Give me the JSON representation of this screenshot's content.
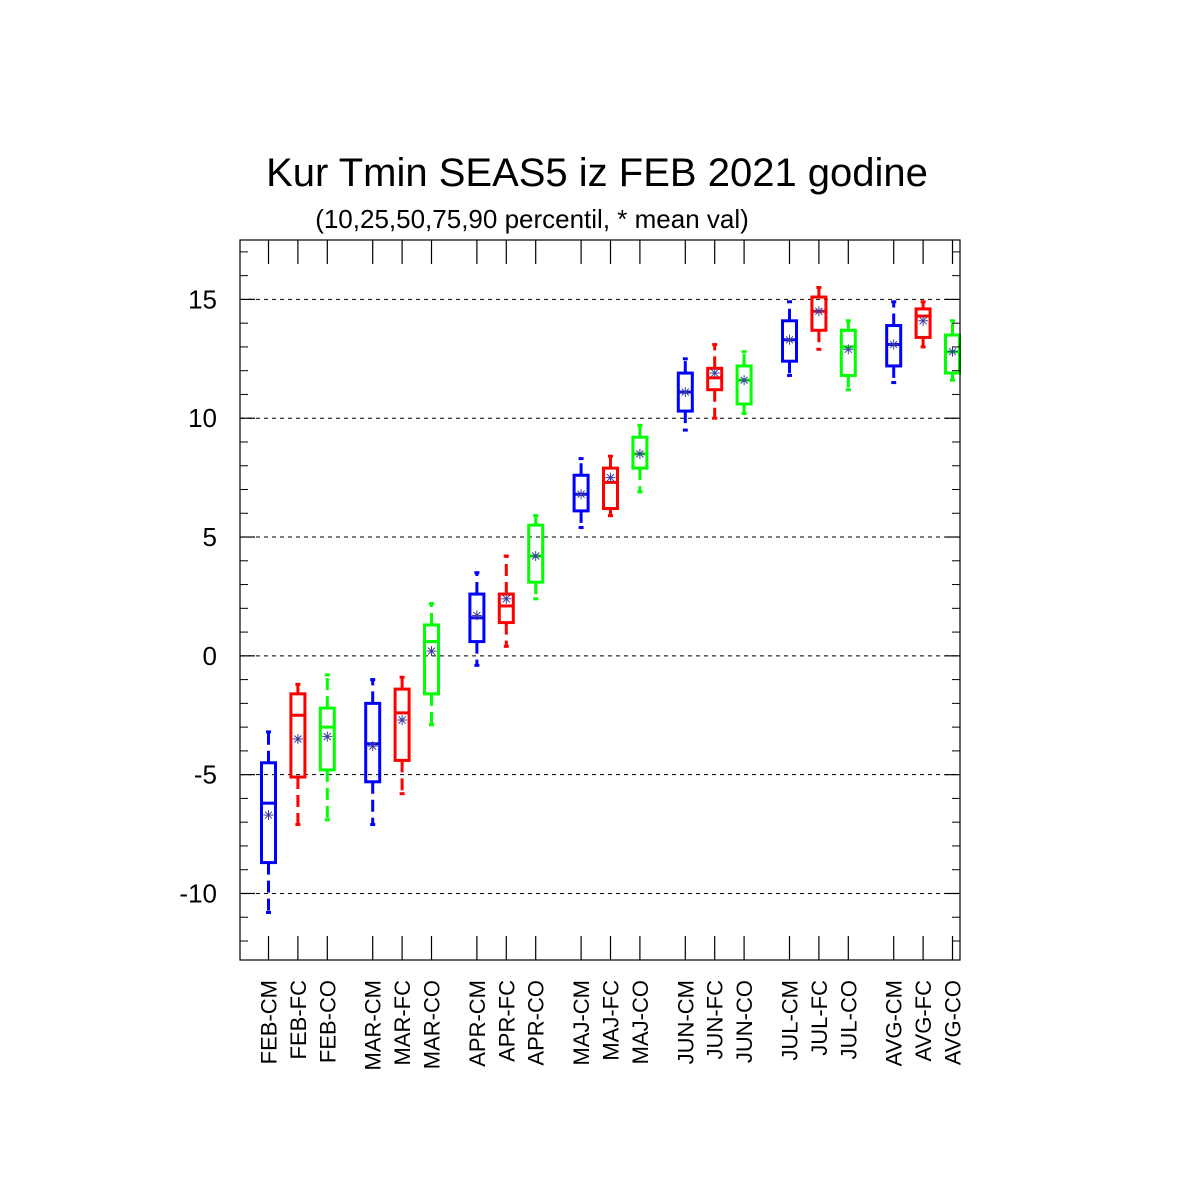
{
  "chart_data": {
    "type": "boxplot",
    "title": "Kur Tmin SEAS5 iz FEB 2021 godine",
    "subtitle": "(10,25,50,75,90 percentil, * mean val)",
    "ylim": [
      -12.8,
      17.5
    ],
    "yticks": [
      -10,
      -5,
      0,
      5,
      10,
      15
    ],
    "grid": "horizontal-dashed",
    "series_colors": {
      "CM": "#0000ff",
      "FC": "#ff0000",
      "CO": "#00ff00"
    },
    "boxes": [
      {
        "label": "FEB-CM",
        "group": "FEB",
        "series": "CM",
        "p10": -10.8,
        "p25": -8.7,
        "p50": -6.2,
        "p75": -4.5,
        "p90": -3.2,
        "mean": -6.7
      },
      {
        "label": "FEB-FC",
        "group": "FEB",
        "series": "FC",
        "p10": -7.1,
        "p25": -5.1,
        "p50": -2.5,
        "p75": -1.6,
        "p90": -1.2,
        "mean": -3.5
      },
      {
        "label": "FEB-CO",
        "group": "FEB",
        "series": "CO",
        "p10": -6.9,
        "p25": -4.8,
        "p50": -3.0,
        "p75": -2.2,
        "p90": -0.8,
        "mean": -3.4
      },
      {
        "label": "MAR-CM",
        "group": "MAR",
        "series": "CM",
        "p10": -7.1,
        "p25": -5.3,
        "p50": -3.7,
        "p75": -2.0,
        "p90": -1.0,
        "mean": -3.8
      },
      {
        "label": "MAR-FC",
        "group": "MAR",
        "series": "FC",
        "p10": -5.8,
        "p25": -4.4,
        "p50": -2.4,
        "p75": -1.4,
        "p90": -0.9,
        "mean": -2.7
      },
      {
        "label": "MAR-CO",
        "group": "MAR",
        "series": "CO",
        "p10": -2.9,
        "p25": -1.6,
        "p50": 0.6,
        "p75": 1.3,
        "p90": 2.2,
        "mean": 0.2
      },
      {
        "label": "APR-CM",
        "group": "APR",
        "series": "CM",
        "p10": -0.4,
        "p25": 0.6,
        "p50": 1.6,
        "p75": 2.6,
        "p90": 3.5,
        "mean": 1.7
      },
      {
        "label": "APR-FC",
        "group": "APR",
        "series": "FC",
        "p10": 0.4,
        "p25": 1.4,
        "p50": 2.1,
        "p75": 2.6,
        "p90": 4.2,
        "mean": 2.4
      },
      {
        "label": "APR-CO",
        "group": "APR",
        "series": "CO",
        "p10": 2.4,
        "p25": 3.1,
        "p50": 4.2,
        "p75": 5.5,
        "p90": 5.9,
        "mean": 4.2
      },
      {
        "label": "MAJ-CM",
        "group": "MAJ",
        "series": "CM",
        "p10": 5.4,
        "p25": 6.1,
        "p50": 6.8,
        "p75": 7.6,
        "p90": 8.3,
        "mean": 6.8
      },
      {
        "label": "MAJ-FC",
        "group": "MAJ",
        "series": "FC",
        "p10": 5.9,
        "p25": 6.2,
        "p50": 7.3,
        "p75": 7.9,
        "p90": 8.4,
        "mean": 7.5
      },
      {
        "label": "MAJ-CO",
        "group": "MAJ",
        "series": "CO",
        "p10": 6.9,
        "p25": 7.9,
        "p50": 8.5,
        "p75": 9.2,
        "p90": 9.7,
        "mean": 8.5
      },
      {
        "label": "JUN-CM",
        "group": "JUN",
        "series": "CM",
        "p10": 9.5,
        "p25": 10.3,
        "p50": 11.1,
        "p75": 11.9,
        "p90": 12.5,
        "mean": 11.1
      },
      {
        "label": "JUN-FC",
        "group": "JUN",
        "series": "FC",
        "p10": 10.0,
        "p25": 11.2,
        "p50": 11.7,
        "p75": 12.1,
        "p90": 13.1,
        "mean": 11.9
      },
      {
        "label": "JUN-CO",
        "group": "JUN",
        "series": "CO",
        "p10": 10.2,
        "p25": 10.6,
        "p50": 11.6,
        "p75": 12.2,
        "p90": 12.8,
        "mean": 11.6
      },
      {
        "label": "JUL-CM",
        "group": "JUL",
        "series": "CM",
        "p10": 11.8,
        "p25": 12.4,
        "p50": 13.3,
        "p75": 14.1,
        "p90": 14.9,
        "mean": 13.3
      },
      {
        "label": "JUL-FC",
        "group": "JUL",
        "series": "FC",
        "p10": 12.9,
        "p25": 13.7,
        "p50": 14.5,
        "p75": 15.1,
        "p90": 15.5,
        "mean": 14.5
      },
      {
        "label": "JUL-CO",
        "group": "JUL",
        "series": "CO",
        "p10": 11.2,
        "p25": 11.8,
        "p50": 13.0,
        "p75": 13.7,
        "p90": 14.1,
        "mean": 12.9
      },
      {
        "label": "AVG-CM",
        "group": "AVG",
        "series": "CM",
        "p10": 11.5,
        "p25": 12.2,
        "p50": 13.1,
        "p75": 13.9,
        "p90": 14.9,
        "mean": 13.1
      },
      {
        "label": "AVG-FC",
        "group": "AVG",
        "series": "FC",
        "p10": 13.0,
        "p25": 13.4,
        "p50": 14.3,
        "p75": 14.6,
        "p90": 14.9,
        "mean": 14.1
      },
      {
        "label": "AVG-CO",
        "group": "AVG",
        "series": "CO",
        "p10": 11.6,
        "p25": 11.9,
        "p50": 12.8,
        "p75": 13.5,
        "p90": 14.1,
        "mean": 12.8
      }
    ]
  }
}
